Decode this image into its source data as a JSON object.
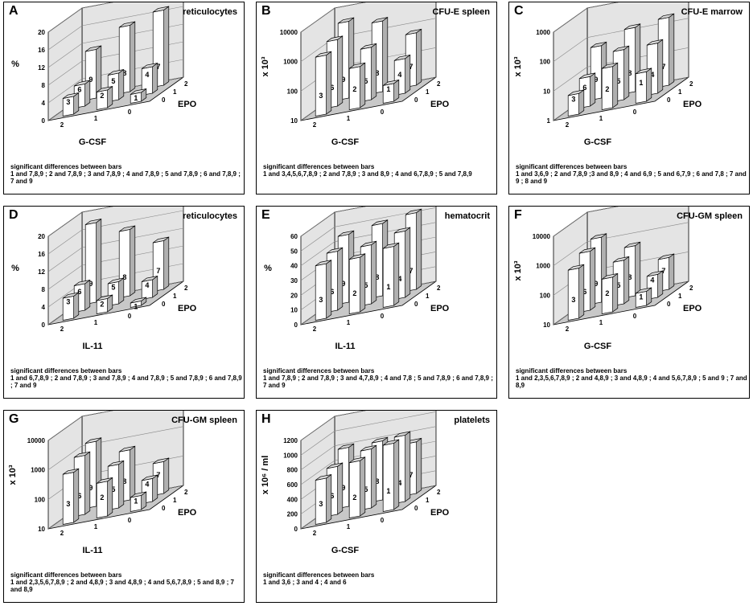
{
  "colors": {
    "grid": "#888888",
    "floor": "#c8c8c8",
    "wall": "#e4e4e4",
    "bar": "#ffffff",
    "barSide": "#b0b0b0",
    "ink": "#000000"
  },
  "panels": [
    {
      "letter": "A",
      "title": "reticulocytes",
      "xfactor": "G-CSF",
      "sig_header": "significant differences between bars",
      "sig_text": "1 and 7,8,9 ; 2 and 7,8,9 ; 3 and 7,8,9 ; 4 and 7,8,9 ; 5 and 7,8,9 ; 6 and 7,8,9 ; 7 and 9"
    },
    {
      "letter": "B",
      "title": "CFU-E spleen",
      "xfactor": "G-CSF",
      "sig_header": "significant differences between bars",
      "sig_text": "1 and 3,4,5,6,7,8,9 ; 2 and 7,8,9 ; 3 and 8,9 ; 4 and 6,7,8,9 ; 5 and 7,8,9"
    },
    {
      "letter": "C",
      "title": "CFU-E marrow",
      "xfactor": "G-CSF",
      "sig_header": "significant differences between bars",
      "sig_text": "1 and 3,6,9 ; 2 and 7,8,9 ;3 and 8,9 ; 4 and 6,9 ; 5 and 6,7,9 ; 6 and 7,8 ; 7 and 9 ; 8 and 9"
    },
    {
      "letter": "D",
      "title": "reticulocytes",
      "xfactor": "IL-11",
      "sig_header": "significant differences between bars",
      "sig_text": "1 and 6,7,8,9 ; 2 and 7,8,9 ; 3 and 7,8,9 ; 4 and 7,8,9 ; 5 and 7,8,9 ; 6 and 7,8,9 ; 7 and 9"
    },
    {
      "letter": "E",
      "title": "hematocrit",
      "xfactor": "IL-11",
      "sig_header": "significant differences between bars",
      "sig_text": "1 and 7,8,9 ; 2 and 7,8,9 ; 3 and 4,7,8,9 ; 4 and 7,8 ; 5 and 7,8,9 ; 6 and 7,8,9 ; 7 and 9"
    },
    {
      "letter": "F",
      "title": "CFU-GM spleen",
      "xfactor": "G-CSF",
      "sig_header": "significant differences between bars",
      "sig_text": "1 and 2,3,5,6,7,8,9 ; 2 and 4,8,9 ; 3 and 4,8,9 ; 4 and 5,6,7,8,9 ; 5 and 9 ; 7 and 8,9"
    },
    {
      "letter": "G",
      "title": "CFU-GM spleen",
      "xfactor": "IL-11",
      "sig_header": "significant differences between bars",
      "sig_text": "1 and 2,3,5,6,7,8,9 ; 2 and 4,8,9 ; 3 and 4,8,9 ; 4 and 5,6,7,8,9 ; 5 and 8,9 ; 7 and 8,9"
    },
    {
      "letter": "H",
      "title": "platelets",
      "xfactor": "G-CSF",
      "sig_header": "significant differences between bars",
      "sig_text": "1 and 3,6 ; 3 and 4 ; 4 and 6"
    }
  ],
  "chart_data": [
    {
      "type": "bar",
      "panel": "A",
      "title": "reticulocytes",
      "ylabel": "%",
      "scale": "linear",
      "yticks": [
        "0",
        "4",
        "8",
        "12",
        "16",
        "20"
      ],
      "ylim": [
        0,
        20
      ],
      "xlabel": "G-CSF",
      "zlabel": "EPO",
      "x_levels": [
        "2",
        "1",
        "0"
      ],
      "z_levels": [
        "0",
        "1",
        "2"
      ],
      "bars": [
        {
          "id": "3",
          "x": "2",
          "z": "0",
          "value": 4
        },
        {
          "id": "6",
          "x": "2",
          "z": "1",
          "value": 5
        },
        {
          "id": "9",
          "x": "2",
          "z": "2",
          "value": 11
        },
        {
          "id": "2",
          "x": "1",
          "z": "0",
          "value": 4
        },
        {
          "id": "5",
          "x": "1",
          "z": "1",
          "value": 6
        },
        {
          "id": "8",
          "x": "1",
          "z": "2",
          "value": 15
        },
        {
          "id": "1",
          "x": "0",
          "z": "0",
          "value": 2
        },
        {
          "id": "4",
          "x": "0",
          "z": "1",
          "value": 6
        },
        {
          "id": "7",
          "x": "0",
          "z": "2",
          "value": 17
        }
      ]
    },
    {
      "type": "bar",
      "panel": "B",
      "title": "CFU-E spleen",
      "ylabel": "x 10³",
      "scale": "log",
      "yticks": [
        "10",
        "100",
        "1000",
        "10000"
      ],
      "ylim": [
        10,
        10000
      ],
      "xlabel": "G-CSF",
      "zlabel": "EPO",
      "x_levels": [
        "2",
        "1",
        "0"
      ],
      "z_levels": [
        "0",
        "1",
        "2"
      ],
      "bars": [
        {
          "id": "3",
          "x": "2",
          "z": "0",
          "value": 1000
        },
        {
          "id": "6",
          "x": "2",
          "z": "1",
          "value": 1800
        },
        {
          "id": "9",
          "x": "2",
          "z": "2",
          "value": 4000
        },
        {
          "id": "2",
          "x": "1",
          "z": "0",
          "value": 250
        },
        {
          "id": "5",
          "x": "1",
          "z": "1",
          "value": 600
        },
        {
          "id": "8",
          "x": "1",
          "z": "2",
          "value": 2500
        },
        {
          "id": "1",
          "x": "0",
          "z": "0",
          "value": 40
        },
        {
          "id": "4",
          "x": "0",
          "z": "1",
          "value": 150
        },
        {
          "id": "7",
          "x": "0",
          "z": "2",
          "value": 600
        }
      ]
    },
    {
      "type": "bar",
      "panel": "C",
      "title": "CFU-E marrow",
      "ylabel": "x 10³",
      "scale": "log",
      "yticks": [
        "1",
        "10",
        "100",
        "1000"
      ],
      "ylim": [
        1,
        1000
      ],
      "xlabel": "G-CSF",
      "zlabel": "EPO",
      "x_levels": [
        "2",
        "1",
        "0"
      ],
      "z_levels": [
        "0",
        "1",
        "2"
      ],
      "bars": [
        {
          "id": "3",
          "x": "2",
          "z": "0",
          "value": 5
        },
        {
          "id": "6",
          "x": "2",
          "z": "1",
          "value": 10
        },
        {
          "id": "9",
          "x": "2",
          "z": "2",
          "value": 60
        },
        {
          "id": "2",
          "x": "1",
          "z": "0",
          "value": 25
        },
        {
          "id": "5",
          "x": "1",
          "z": "1",
          "value": 50
        },
        {
          "id": "8",
          "x": "1",
          "z": "2",
          "value": 150
        },
        {
          "id": "1",
          "x": "0",
          "z": "0",
          "value": 10
        },
        {
          "id": "4",
          "x": "0",
          "z": "1",
          "value": 50
        },
        {
          "id": "7",
          "x": "0",
          "z": "2",
          "value": 200
        }
      ]
    },
    {
      "type": "bar",
      "panel": "D",
      "title": "reticulocytes",
      "ylabel": "%",
      "scale": "linear",
      "yticks": [
        "0",
        "4",
        "8",
        "12",
        "16",
        "20"
      ],
      "ylim": [
        0,
        20
      ],
      "xlabel": "IL-11",
      "zlabel": "EPO",
      "x_levels": [
        "2",
        "1",
        "0"
      ],
      "z_levels": [
        "0",
        "1",
        "2"
      ],
      "bars": [
        {
          "id": "3",
          "x": "2",
          "z": "0",
          "value": 5
        },
        {
          "id": "6",
          "x": "2",
          "z": "1",
          "value": 6
        },
        {
          "id": "9",
          "x": "2",
          "z": "2",
          "value": 18
        },
        {
          "id": "2",
          "x": "1",
          "z": "0",
          "value": 3
        },
        {
          "id": "5",
          "x": "1",
          "z": "1",
          "value": 5
        },
        {
          "id": "8",
          "x": "1",
          "z": "2",
          "value": 15
        },
        {
          "id": "1",
          "x": "0",
          "z": "0",
          "value": 1
        },
        {
          "id": "4",
          "x": "0",
          "z": "1",
          "value": 4
        },
        {
          "id": "7",
          "x": "0",
          "z": "2",
          "value": 11
        }
      ]
    },
    {
      "type": "bar",
      "panel": "E",
      "title": "hematocrit",
      "ylabel": "%",
      "scale": "linear",
      "yticks": [
        "0",
        "10",
        "20",
        "30",
        "40",
        "50",
        "60"
      ],
      "ylim": [
        0,
        60
      ],
      "xlabel": "IL-11",
      "zlabel": "EPO",
      "x_levels": [
        "2",
        "1",
        "0"
      ],
      "z_levels": [
        "0",
        "1",
        "2"
      ],
      "bars": [
        {
          "id": "3",
          "x": "2",
          "z": "0",
          "value": 37
        },
        {
          "id": "6",
          "x": "2",
          "z": "1",
          "value": 40
        },
        {
          "id": "9",
          "x": "2",
          "z": "2",
          "value": 46
        },
        {
          "id": "2",
          "x": "1",
          "z": "0",
          "value": 37
        },
        {
          "id": "5",
          "x": "1",
          "z": "1",
          "value": 40
        },
        {
          "id": "8",
          "x": "1",
          "z": "2",
          "value": 49
        },
        {
          "id": "1",
          "x": "0",
          "z": "0",
          "value": 40
        },
        {
          "id": "4",
          "x": "0",
          "z": "1",
          "value": 45
        },
        {
          "id": "7",
          "x": "0",
          "z": "2",
          "value": 52
        }
      ]
    },
    {
      "type": "bar",
      "panel": "F",
      "title": "CFU-GM spleen",
      "ylabel": "x 10³",
      "scale": "log",
      "yticks": [
        "10",
        "100",
        "1000",
        "10000"
      ],
      "ylim": [
        10,
        10000
      ],
      "xlabel": "G-CSF",
      "zlabel": "EPO",
      "x_levels": [
        "2",
        "1",
        "0"
      ],
      "z_levels": [
        "0",
        "1",
        "2"
      ],
      "bars": [
        {
          "id": "3",
          "x": "2",
          "z": "0",
          "value": 500
        },
        {
          "id": "6",
          "x": "2",
          "z": "1",
          "value": 1000
        },
        {
          "id": "9",
          "x": "2",
          "z": "2",
          "value": 1600
        },
        {
          "id": "2",
          "x": "1",
          "z": "0",
          "value": 150
        },
        {
          "id": "5",
          "x": "1",
          "z": "1",
          "value": 300
        },
        {
          "id": "8",
          "x": "1",
          "z": "2",
          "value": 500
        },
        {
          "id": "1",
          "x": "0",
          "z": "0",
          "value": 30
        },
        {
          "id": "4",
          "x": "0",
          "z": "1",
          "value": 60
        },
        {
          "id": "7",
          "x": "0",
          "z": "2",
          "value": 120
        }
      ]
    },
    {
      "type": "bar",
      "panel": "G",
      "title": "CFU-GM spleen",
      "ylabel": "x 10³",
      "scale": "log",
      "yticks": [
        "10",
        "100",
        "1000",
        "10000"
      ],
      "ylim": [
        10,
        10000
      ],
      "xlabel": "IL-11",
      "zlabel": "EPO",
      "x_levels": [
        "2",
        "1",
        "0"
      ],
      "z_levels": [
        "0",
        "1",
        "2"
      ],
      "bars": [
        {
          "id": "3",
          "x": "2",
          "z": "0",
          "value": 500
        },
        {
          "id": "6",
          "x": "2",
          "z": "1",
          "value": 1000
        },
        {
          "id": "9",
          "x": "2",
          "z": "2",
          "value": 1600
        },
        {
          "id": "2",
          "x": "1",
          "z": "0",
          "value": 150
        },
        {
          "id": "5",
          "x": "1",
          "z": "1",
          "value": 300
        },
        {
          "id": "8",
          "x": "1",
          "z": "2",
          "value": 500
        },
        {
          "id": "1",
          "x": "0",
          "z": "0",
          "value": 30
        },
        {
          "id": "4",
          "x": "0",
          "z": "1",
          "value": 60
        },
        {
          "id": "7",
          "x": "0",
          "z": "2",
          "value": 120
        }
      ]
    },
    {
      "type": "bar",
      "panel": "H",
      "title": "platelets",
      "ylabel": "x 10⁶ / ml",
      "scale": "linear",
      "yticks": [
        "0",
        "200",
        "400",
        "600",
        "800",
        "1000",
        "1200"
      ],
      "ylim": [
        0,
        1200
      ],
      "xlabel": "G-CSF",
      "zlabel": "EPO",
      "x_levels": [
        "2",
        "1",
        "0"
      ],
      "z_levels": [
        "0",
        "1",
        "2"
      ],
      "bars": [
        {
          "id": "3",
          "x": "2",
          "z": "0",
          "value": 600
        },
        {
          "id": "6",
          "x": "2",
          "z": "1",
          "value": 650
        },
        {
          "id": "9",
          "x": "2",
          "z": "2",
          "value": 800
        },
        {
          "id": "2",
          "x": "1",
          "z": "0",
          "value": 750
        },
        {
          "id": "5",
          "x": "1",
          "z": "1",
          "value": 800
        },
        {
          "id": "8",
          "x": "1",
          "z": "2",
          "value": 800
        },
        {
          "id": "1",
          "x": "0",
          "z": "0",
          "value": 900
        },
        {
          "id": "4",
          "x": "0",
          "z": "1",
          "value": 900
        },
        {
          "id": "7",
          "x": "0",
          "z": "2",
          "value": 700
        }
      ]
    }
  ]
}
